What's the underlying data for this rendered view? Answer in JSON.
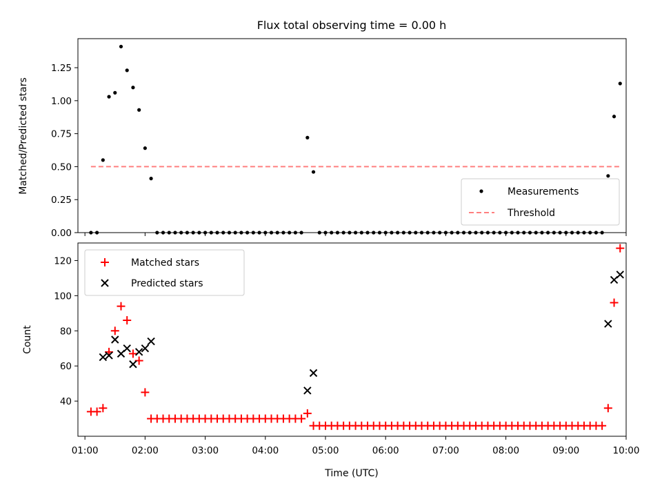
{
  "chart_data": [
    {
      "type": "scatter",
      "title": "Flux total observing time = 0.00 h",
      "xlabel": "",
      "ylabel": "Matched/Predicted stars",
      "xaxis": "time",
      "xlim": [
        "00:53",
        "10:00"
      ],
      "ylim": [
        0,
        1.47
      ],
      "yticks": [
        "0.00",
        "0.25",
        "0.50",
        "0.75",
        "1.00",
        "1.25"
      ],
      "x_tick_labels_shown": false,
      "legend": {
        "placement": "lower right",
        "entries": [
          {
            "label": "Measurements",
            "marker": "dot",
            "color": "#000000"
          },
          {
            "label": "Threshold",
            "marker": "dashed-line",
            "color": "#ff7f7f"
          }
        ]
      },
      "series": [
        {
          "name": "Measurements",
          "color": "#000000",
          "points": [
            [
              "01:06",
              0
            ],
            [
              "01:12",
              0
            ],
            [
              "01:18",
              0.55
            ],
            [
              "01:24",
              1.03
            ],
            [
              "01:30",
              1.06
            ],
            [
              "01:36",
              1.41
            ],
            [
              "01:42",
              1.23
            ],
            [
              "01:48",
              1.1
            ],
            [
              "01:54",
              0.93
            ],
            [
              "02:00",
              0.64
            ],
            [
              "02:06",
              0.41
            ],
            [
              "02:12",
              0
            ],
            [
              "02:18",
              0
            ],
            [
              "02:24",
              0
            ],
            [
              "02:30",
              0
            ],
            [
              "02:36",
              0
            ],
            [
              "02:42",
              0
            ],
            [
              "02:48",
              0
            ],
            [
              "02:54",
              0
            ],
            [
              "03:00",
              0
            ],
            [
              "03:06",
              0
            ],
            [
              "03:12",
              0
            ],
            [
              "03:18",
              0
            ],
            [
              "03:24",
              0
            ],
            [
              "03:30",
              0
            ],
            [
              "03:36",
              0
            ],
            [
              "03:42",
              0
            ],
            [
              "03:48",
              0
            ],
            [
              "03:54",
              0
            ],
            [
              "04:00",
              0
            ],
            [
              "04:06",
              0
            ],
            [
              "04:12",
              0
            ],
            [
              "04:18",
              0
            ],
            [
              "04:24",
              0
            ],
            [
              "04:30",
              0
            ],
            [
              "04:36",
              0
            ],
            [
              "04:42",
              0.72
            ],
            [
              "04:48",
              0.46
            ],
            [
              "04:54",
              0
            ],
            [
              "05:00",
              0
            ],
            [
              "05:06",
              0
            ],
            [
              "05:12",
              0
            ],
            [
              "05:18",
              0
            ],
            [
              "05:24",
              0
            ],
            [
              "05:30",
              0
            ],
            [
              "05:36",
              0
            ],
            [
              "05:42",
              0
            ],
            [
              "05:48",
              0
            ],
            [
              "05:54",
              0
            ],
            [
              "06:00",
              0
            ],
            [
              "06:06",
              0
            ],
            [
              "06:12",
              0
            ],
            [
              "06:18",
              0
            ],
            [
              "06:24",
              0
            ],
            [
              "06:30",
              0
            ],
            [
              "06:36",
              0
            ],
            [
              "06:42",
              0
            ],
            [
              "06:48",
              0
            ],
            [
              "06:54",
              0
            ],
            [
              "07:00",
              0
            ],
            [
              "07:06",
              0
            ],
            [
              "07:12",
              0
            ],
            [
              "07:18",
              0
            ],
            [
              "07:24",
              0
            ],
            [
              "07:30",
              0
            ],
            [
              "07:36",
              0
            ],
            [
              "07:42",
              0
            ],
            [
              "07:48",
              0
            ],
            [
              "07:54",
              0
            ],
            [
              "08:00",
              0
            ],
            [
              "08:06",
              0
            ],
            [
              "08:12",
              0
            ],
            [
              "08:18",
              0
            ],
            [
              "08:24",
              0
            ],
            [
              "08:30",
              0
            ],
            [
              "08:36",
              0
            ],
            [
              "08:42",
              0
            ],
            [
              "08:48",
              0
            ],
            [
              "08:54",
              0
            ],
            [
              "09:00",
              0
            ],
            [
              "09:06",
              0
            ],
            [
              "09:12",
              0
            ],
            [
              "09:18",
              0
            ],
            [
              "09:24",
              0
            ],
            [
              "09:30",
              0
            ],
            [
              "09:36",
              0
            ],
            [
              "09:42",
              0.43
            ],
            [
              "09:48",
              0.88
            ],
            [
              "09:54",
              1.13
            ]
          ]
        },
        {
          "name": "Threshold",
          "color": "#ff7f7f",
          "line": [
            [
              "01:06",
              0.5
            ],
            [
              "09:54",
              0.5
            ]
          ]
        }
      ]
    },
    {
      "type": "scatter",
      "title": "",
      "xlabel": "Time (UTC)",
      "ylabel": "Count",
      "xaxis": "time",
      "xlim": [
        "00:53",
        "10:00"
      ],
      "ylim": [
        20,
        130
      ],
      "yticks": [
        "40",
        "60",
        "80",
        "100",
        "120"
      ],
      "xticks": [
        "01:00",
        "02:00",
        "03:00",
        "04:00",
        "05:00",
        "06:00",
        "07:00",
        "08:00",
        "09:00",
        "10:00"
      ],
      "legend": {
        "placement": "upper left",
        "entries": [
          {
            "label": "Matched stars",
            "marker": "plus",
            "color": "#ff0000"
          },
          {
            "label": "Predicted stars",
            "marker": "x",
            "color": "#000000"
          }
        ]
      },
      "series": [
        {
          "name": "Matched stars",
          "color": "#ff0000",
          "points": [
            [
              "01:06",
              34
            ],
            [
              "01:12",
              34
            ],
            [
              "01:18",
              36
            ],
            [
              "01:24",
              68
            ],
            [
              "01:30",
              80
            ],
            [
              "01:36",
              94
            ],
            [
              "01:42",
              86
            ],
            [
              "01:48",
              67
            ],
            [
              "01:54",
              63
            ],
            [
              "02:00",
              45
            ],
            [
              "02:06",
              30
            ],
            [
              "02:12",
              30
            ],
            [
              "02:18",
              30
            ],
            [
              "02:24",
              30
            ],
            [
              "02:30",
              30
            ],
            [
              "02:36",
              30
            ],
            [
              "02:42",
              30
            ],
            [
              "02:48",
              30
            ],
            [
              "02:54",
              30
            ],
            [
              "03:00",
              30
            ],
            [
              "03:06",
              30
            ],
            [
              "03:12",
              30
            ],
            [
              "03:18",
              30
            ],
            [
              "03:24",
              30
            ],
            [
              "03:30",
              30
            ],
            [
              "03:36",
              30
            ],
            [
              "03:42",
              30
            ],
            [
              "03:48",
              30
            ],
            [
              "03:54",
              30
            ],
            [
              "04:00",
              30
            ],
            [
              "04:06",
              30
            ],
            [
              "04:12",
              30
            ],
            [
              "04:18",
              30
            ],
            [
              "04:24",
              30
            ],
            [
              "04:30",
              30
            ],
            [
              "04:36",
              30
            ],
            [
              "04:42",
              33
            ],
            [
              "04:48",
              26
            ],
            [
              "04:54",
              26
            ],
            [
              "05:00",
              26
            ],
            [
              "05:06",
              26
            ],
            [
              "05:12",
              26
            ],
            [
              "05:18",
              26
            ],
            [
              "05:24",
              26
            ],
            [
              "05:30",
              26
            ],
            [
              "05:36",
              26
            ],
            [
              "05:42",
              26
            ],
            [
              "05:48",
              26
            ],
            [
              "05:54",
              26
            ],
            [
              "06:00",
              26
            ],
            [
              "06:06",
              26
            ],
            [
              "06:12",
              26
            ],
            [
              "06:18",
              26
            ],
            [
              "06:24",
              26
            ],
            [
              "06:30",
              26
            ],
            [
              "06:36",
              26
            ],
            [
              "06:42",
              26
            ],
            [
              "06:48",
              26
            ],
            [
              "06:54",
              26
            ],
            [
              "07:00",
              26
            ],
            [
              "07:06",
              26
            ],
            [
              "07:12",
              26
            ],
            [
              "07:18",
              26
            ],
            [
              "07:24",
              26
            ],
            [
              "07:30",
              26
            ],
            [
              "07:36",
              26
            ],
            [
              "07:42",
              26
            ],
            [
              "07:48",
              26
            ],
            [
              "07:54",
              26
            ],
            [
              "08:00",
              26
            ],
            [
              "08:06",
              26
            ],
            [
              "08:12",
              26
            ],
            [
              "08:18",
              26
            ],
            [
              "08:24",
              26
            ],
            [
              "08:30",
              26
            ],
            [
              "08:36",
              26
            ],
            [
              "08:42",
              26
            ],
            [
              "08:48",
              26
            ],
            [
              "08:54",
              26
            ],
            [
              "09:00",
              26
            ],
            [
              "09:06",
              26
            ],
            [
              "09:12",
              26
            ],
            [
              "09:18",
              26
            ],
            [
              "09:24",
              26
            ],
            [
              "09:30",
              26
            ],
            [
              "09:36",
              26
            ],
            [
              "09:42",
              36
            ],
            [
              "09:48",
              96
            ],
            [
              "09:54",
              127
            ]
          ]
        },
        {
          "name": "Predicted stars",
          "color": "#000000",
          "points": [
            [
              "01:18",
              65
            ],
            [
              "01:24",
              66
            ],
            [
              "01:30",
              75
            ],
            [
              "01:36",
              67
            ],
            [
              "01:42",
              70
            ],
            [
              "01:48",
              61
            ],
            [
              "01:54",
              68
            ],
            [
              "02:00",
              70
            ],
            [
              "02:06",
              74
            ],
            [
              "04:42",
              46
            ],
            [
              "04:48",
              56
            ],
            [
              "09:42",
              84
            ],
            [
              "09:48",
              109
            ],
            [
              "09:54",
              112
            ]
          ]
        }
      ]
    }
  ]
}
